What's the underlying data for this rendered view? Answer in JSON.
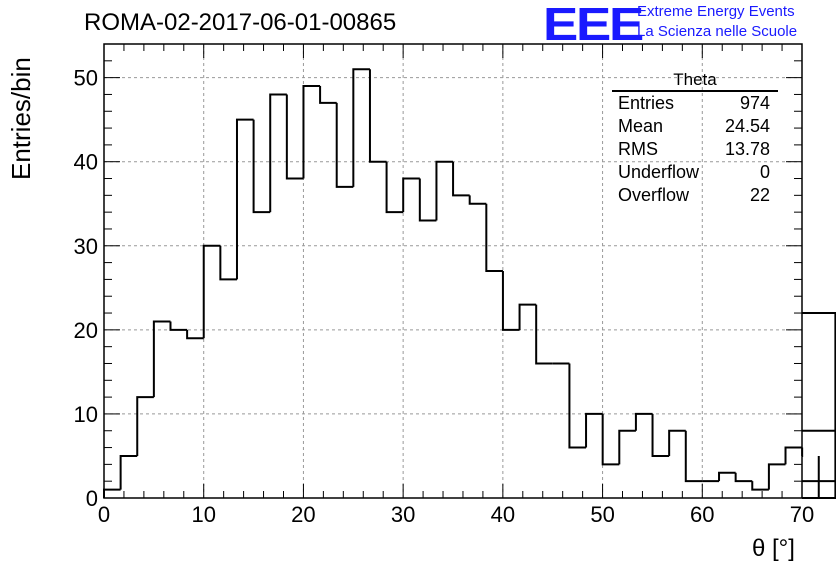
{
  "header": {
    "title": "ROMA-02-2017-06-01-00865",
    "logo_text": "EEE",
    "logo_line1": "Extreme Energy Events",
    "logo_line2": "La Scienza nelle Scuole",
    "logo_color": "#1a1aff"
  },
  "stats": {
    "title": "Theta",
    "rows": [
      {
        "label": "Entries",
        "value": "974"
      },
      {
        "label": "Mean",
        "value": "24.54"
      },
      {
        "label": "RMS",
        "value": "13.78"
      },
      {
        "label": "Underflow",
        "value": "0"
      },
      {
        "label": "Overflow",
        "value": "22"
      }
    ]
  },
  "chart_data": {
    "type": "bar",
    "style": "step-histogram",
    "title": "ROMA-02-2017-06-01-00865",
    "xlabel": "θ [°]",
    "ylabel": "Entries/bin",
    "xlim": [
      0,
      70
    ],
    "ylim": [
      0,
      54
    ],
    "grid": true,
    "bin_width": 1.667,
    "bin_low_edge": 0,
    "x_ticks": [
      0,
      10,
      20,
      30,
      40,
      50,
      60,
      70
    ],
    "y_ticks": [
      0,
      10,
      20,
      30,
      40,
      50
    ],
    "values": [
      1,
      5,
      12,
      21,
      20,
      19,
      30,
      26,
      45,
      34,
      48,
      38,
      49,
      47,
      37,
      51,
      40,
      34,
      38,
      33,
      40,
      36,
      35,
      27,
      20,
      23,
      16,
      16,
      6,
      10,
      4,
      8,
      10,
      5,
      8,
      2,
      2,
      3,
      2,
      1,
      4,
      6,
      5,
      0,
      22,
      8,
      2,
      0
    ]
  }
}
